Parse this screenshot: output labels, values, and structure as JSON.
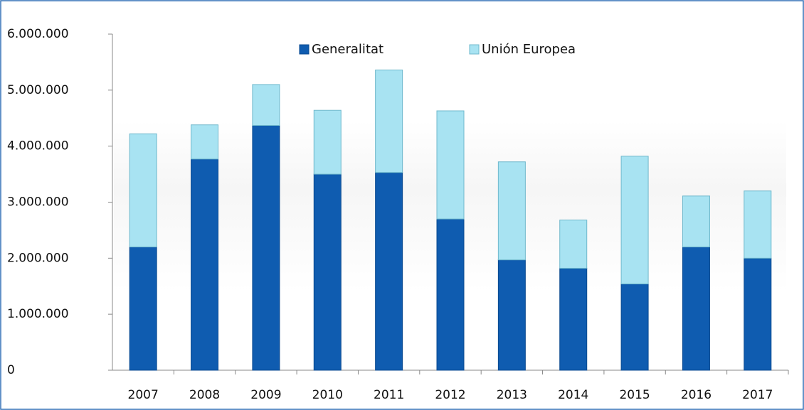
{
  "chart_data": {
    "type": "stacked-bar",
    "categories": [
      "2007",
      "2008",
      "2009",
      "2010",
      "2011",
      "2012",
      "2013",
      "2014",
      "2015",
      "2016",
      "2017"
    ],
    "series": [
      {
        "name": "Generalitat",
        "color": "#0f5cb0",
        "values": [
          2200000,
          3770000,
          4370000,
          3500000,
          3530000,
          2700000,
          1970000,
          1820000,
          1540000,
          2200000,
          2000000
        ]
      },
      {
        "name": "Unión Europea",
        "color": "#a8e3f2",
        "values": [
          2020000,
          610000,
          730000,
          1140000,
          1830000,
          1930000,
          1750000,
          860000,
          2280000,
          910000,
          1200000
        ]
      }
    ],
    "ylim": [
      0,
      6000000
    ],
    "yticks": [
      0,
      {
        "value": 1000000,
        "label": "1.000.000"
      },
      {
        "value": 2000000,
        "label": "2.000.000"
      },
      {
        "value": 3000000,
        "label": "3.000.000"
      },
      {
        "value": 4000000,
        "label": "4.000.000"
      },
      {
        "value": 5000000,
        "label": "5.000.000"
      },
      {
        "value": 6000000,
        "label": "6.000.000"
      }
    ]
  }
}
